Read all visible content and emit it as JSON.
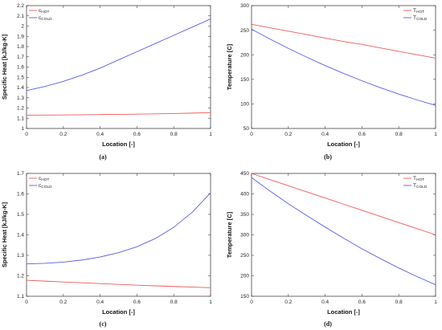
{
  "charts": [
    {
      "panel_id": "a",
      "caption": "(a)",
      "chart_data": {
        "type": "line",
        "xlabel": "Location [-]",
        "ylabel": "Specific Heat [kJ/kg-K]",
        "xlim": [
          0,
          1
        ],
        "ylim": [
          1,
          2.2
        ],
        "xticks": [
          0,
          0.2,
          0.4,
          0.6,
          0.8,
          1
        ],
        "xtick_labels": [
          "0",
          "0.2",
          "0.4",
          "0.6",
          "0.8",
          "1"
        ],
        "yticks": [
          1,
          1.1,
          1.2,
          1.3,
          1.4,
          1.5,
          1.6,
          1.7,
          1.8,
          1.9,
          2,
          2.1,
          2.2
        ],
        "ytick_labels": [
          "1",
          "1.1",
          "1.2",
          "1.3",
          "1.4",
          "1.5",
          "1.6",
          "1.7",
          "1.8",
          "1.9",
          "2",
          "2.1",
          "2.2"
        ],
        "legend_position": "top-left",
        "grid": false,
        "x": [
          0,
          0.1,
          0.2,
          0.3,
          0.4,
          0.5,
          0.6,
          0.7,
          0.8,
          0.9,
          1
        ],
        "series": [
          {
            "name": "cHOT",
            "label_main": "c",
            "label_sub": "HOT",
            "color": "#ee5b5b",
            "values": [
              1.13,
              1.131,
              1.132,
              1.134,
              1.136,
              1.138,
              1.14,
              1.143,
              1.146,
              1.15,
              1.155
            ]
          },
          {
            "name": "cCOLD",
            "label_main": "c",
            "label_sub": "COLD",
            "color": "#5b5bee",
            "values": [
              1.37,
              1.41,
              1.46,
              1.52,
              1.59,
              1.67,
              1.75,
              1.83,
              1.91,
              1.99,
              2.07
            ]
          }
        ]
      }
    },
    {
      "panel_id": "b",
      "caption": "(b)",
      "chart_data": {
        "type": "line",
        "xlabel": "Location [-]",
        "ylabel": "Temperature [C]",
        "xlim": [
          0,
          1
        ],
        "ylim": [
          50,
          300
        ],
        "xticks": [
          0,
          0.2,
          0.4,
          0.6,
          0.8,
          1
        ],
        "xtick_labels": [
          "0",
          "0.2",
          "0.4",
          "0.6",
          "0.8",
          "1"
        ],
        "yticks": [
          50,
          100,
          150,
          200,
          250,
          300
        ],
        "ytick_labels": [
          "50",
          "100",
          "150",
          "200",
          "250",
          "300"
        ],
        "legend_position": "top-right",
        "grid": false,
        "x": [
          0,
          0.1,
          0.2,
          0.3,
          0.4,
          0.5,
          0.6,
          0.7,
          0.8,
          0.9,
          1
        ],
        "series": [
          {
            "name": "THOT",
            "label_main": "T",
            "label_sub": "HOT",
            "color": "#ee5b5b",
            "values": [
              262,
              255,
              248,
              241,
              234,
              227,
              221,
              214,
              207,
              200,
              193
            ]
          },
          {
            "name": "TCOLD",
            "label_main": "T",
            "label_sub": "COLD",
            "color": "#5b5bee",
            "values": [
              252,
              232,
              213,
              195,
              178,
              162,
              147,
              133,
              120,
              108,
              97
            ]
          }
        ]
      }
    },
    {
      "panel_id": "c",
      "caption": "(c)",
      "chart_data": {
        "type": "line",
        "xlabel": "Location [-]",
        "ylabel": "Specific Heat [kJ/kg-K]",
        "xlim": [
          0,
          1
        ],
        "ylim": [
          1.1,
          1.7
        ],
        "xticks": [
          0,
          0.2,
          0.4,
          0.6,
          0.8,
          1
        ],
        "xtick_labels": [
          "0",
          "0.2",
          "0.4",
          "0.6",
          "0.8",
          "1"
        ],
        "yticks": [
          1.1,
          1.2,
          1.3,
          1.4,
          1.5,
          1.6,
          1.7
        ],
        "ytick_labels": [
          "1.1",
          "1.2",
          "1.3",
          "1.4",
          "1.5",
          "1.6",
          "1.7"
        ],
        "legend_position": "top-left",
        "grid": false,
        "x": [
          0,
          0.1,
          0.2,
          0.3,
          0.4,
          0.5,
          0.6,
          0.7,
          0.8,
          0.9,
          1
        ],
        "series": [
          {
            "name": "cHOT",
            "label_main": "c",
            "label_sub": "HOT",
            "color": "#ee5b5b",
            "values": [
              1.178,
              1.174,
              1.17,
              1.166,
              1.162,
              1.158,
              1.154,
              1.151,
              1.148,
              1.145,
              1.142
            ]
          },
          {
            "name": "cCOLD",
            "label_main": "c",
            "label_sub": "COLD",
            "color": "#5b5bee",
            "values": [
              1.258,
              1.261,
              1.267,
              1.277,
              1.292,
              1.313,
              1.342,
              1.382,
              1.437,
              1.51,
              1.605
            ]
          }
        ]
      }
    },
    {
      "panel_id": "d",
      "caption": "(d)",
      "chart_data": {
        "type": "line",
        "xlabel": "Location [-]",
        "ylabel": "Temperature [C]",
        "xlim": [
          0,
          1
        ],
        "ylim": [
          150,
          450
        ],
        "xticks": [
          0,
          0.2,
          0.4,
          0.6,
          0.8,
          1
        ],
        "xtick_labels": [
          "0",
          "0.2",
          "0.4",
          "0.6",
          "0.8",
          "1"
        ],
        "yticks": [
          150,
          200,
          250,
          300,
          350,
          400,
          450
        ],
        "ytick_labels": [
          "150",
          "200",
          "250",
          "300",
          "350",
          "400",
          "450"
        ],
        "legend_position": "top-right",
        "grid": false,
        "x": [
          0,
          0.1,
          0.2,
          0.3,
          0.4,
          0.5,
          0.6,
          0.7,
          0.8,
          0.9,
          1
        ],
        "series": [
          {
            "name": "THOT",
            "label_main": "T",
            "label_sub": "HOT",
            "color": "#ee5b5b",
            "values": [
              450,
              435,
              420,
              405,
              390,
              375,
              360,
              345,
              330,
              315,
              300
            ]
          },
          {
            "name": "TCOLD",
            "label_main": "T",
            "label_sub": "COLD",
            "color": "#5b5bee",
            "values": [
              440,
              407,
              376,
              347,
              319,
              292,
              266,
              242,
              219,
              198,
              178
            ]
          }
        ]
      }
    }
  ]
}
